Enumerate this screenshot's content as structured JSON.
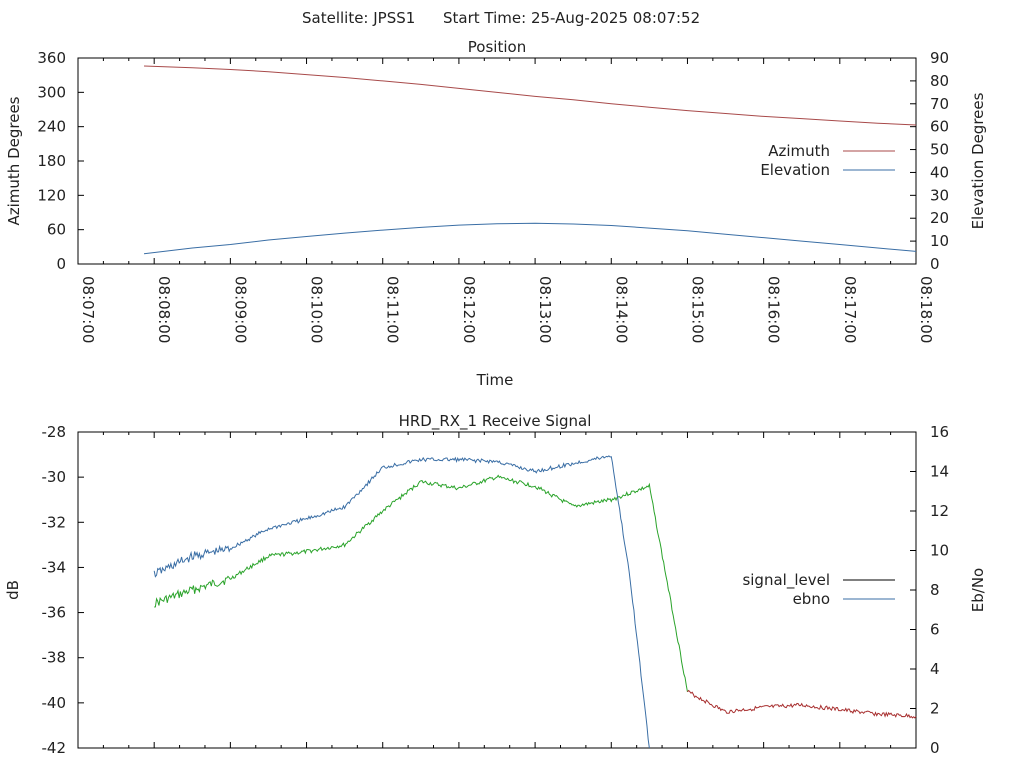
{
  "header": {
    "satellite": "Satellite: JPSS1",
    "start_time": "Start Time: 25-Aug-2025 08:07:52"
  },
  "chart_data": [
    {
      "type": "line",
      "title": "Position",
      "xlabel": "Time",
      "ylabel": "Azimuth Degrees",
      "y2label": "Elevation Degrees",
      "ylim": [
        0,
        360
      ],
      "y2lim": [
        0,
        90
      ],
      "yticks": [
        "0",
        "60",
        "120",
        "180",
        "240",
        "300",
        "360"
      ],
      "y2ticks": [
        "0",
        "10",
        "20",
        "30",
        "40",
        "50",
        "60",
        "70",
        "80",
        "90"
      ],
      "xlim_minutes": [
        0,
        11
      ],
      "xticks": [
        "08:07:00",
        "08:08:00",
        "08:09:00",
        "08:10:00",
        "08:11:00",
        "08:12:00",
        "08:13:00",
        "08:14:00",
        "08:15:00",
        "08:16:00",
        "08:17:00",
        "08:18:00"
      ],
      "legend_position": "right",
      "series": [
        {
          "name": "Azimuth",
          "axis": "left",
          "color": "#a84a4a",
          "x": [
            "08:07:52",
            "08:08:30",
            "08:09:00",
            "08:09:30",
            "08:10:00",
            "08:10:30",
            "08:11:00",
            "08:11:30",
            "08:12:00",
            "08:12:30",
            "08:13:00",
            "08:13:30",
            "08:14:00",
            "08:14:30",
            "08:15:00",
            "08:15:30",
            "08:16:00",
            "08:16:30",
            "08:17:00",
            "08:17:30",
            "08:18:00"
          ],
          "values": [
            346,
            343,
            340,
            336,
            331,
            326,
            320,
            314,
            307,
            300,
            293,
            287,
            280,
            274,
            268,
            263,
            258,
            254,
            250,
            246,
            243
          ]
        },
        {
          "name": "Elevation",
          "axis": "right",
          "color": "#3a6ea5",
          "x": [
            "08:07:52",
            "08:08:30",
            "08:09:00",
            "08:09:30",
            "08:10:00",
            "08:10:30",
            "08:11:00",
            "08:11:30",
            "08:12:00",
            "08:12:30",
            "08:13:00",
            "08:13:30",
            "08:14:00",
            "08:14:30",
            "08:15:00",
            "08:15:30",
            "08:16:00",
            "08:16:30",
            "08:17:00",
            "08:17:30",
            "08:18:00"
          ],
          "values": [
            4.5,
            7,
            8.5,
            10.5,
            12,
            13.5,
            14.8,
            16,
            17,
            17.6,
            17.8,
            17.5,
            16.8,
            15.7,
            14.5,
            13,
            11.5,
            10,
            8.5,
            7,
            5.5
          ]
        }
      ]
    },
    {
      "type": "line",
      "title": "HRD_RX_1 Receive Signal",
      "ylabel": "dB",
      "y2label": "Eb/No",
      "ylim": [
        -42,
        -28
      ],
      "y2lim": [
        0,
        16
      ],
      "yticks": [
        "-42",
        "-40",
        "-38",
        "-36",
        "-34",
        "-32",
        "-30",
        "-28"
      ],
      "y2ticks": [
        "0",
        "2",
        "4",
        "6",
        "8",
        "10",
        "12",
        "14",
        "16"
      ],
      "xlim_minutes": [
        0,
        11
      ],
      "legend_position": "right",
      "series": [
        {
          "name": "signal_level",
          "axis": "left",
          "color": "#000000",
          "segment_colors": {
            "high": "#2aa32a",
            "low": "#a83030"
          },
          "x": [
            "08:08:00",
            "08:08:30",
            "08:09:00",
            "08:09:30",
            "08:10:00",
            "08:10:30",
            "08:11:00",
            "08:11:30",
            "08:12:00",
            "08:12:30",
            "08:13:00",
            "08:13:30",
            "08:14:00",
            "08:14:30",
            "08:15:00",
            "08:15:30",
            "08:16:00",
            "08:16:30",
            "08:17:00",
            "08:17:30",
            "08:18:00"
          ],
          "values": [
            -35.6,
            -35.0,
            -34.5,
            -33.5,
            -33.3,
            -33.0,
            -31.5,
            -30.2,
            -30.5,
            -30.0,
            -30.4,
            -31.3,
            -31.0,
            -30.4,
            -39.5,
            -40.4,
            -40.2,
            -40.1,
            -40.3,
            -40.5,
            -40.6
          ]
        },
        {
          "name": "ebno",
          "axis": "right",
          "color": "#3a6ea5",
          "x": [
            "08:08:00",
            "08:08:30",
            "08:09:00",
            "08:09:30",
            "08:10:00",
            "08:10:30",
            "08:11:00",
            "08:11:30",
            "08:12:00",
            "08:12:30",
            "08:13:00",
            "08:13:30",
            "08:14:00",
            "08:14:15",
            "08:14:30"
          ],
          "values": [
            8.8,
            9.7,
            10.1,
            11.1,
            11.6,
            12.2,
            14.2,
            14.6,
            14.6,
            14.5,
            14.0,
            14.4,
            14.8,
            8.5,
            0
          ]
        }
      ]
    }
  ]
}
